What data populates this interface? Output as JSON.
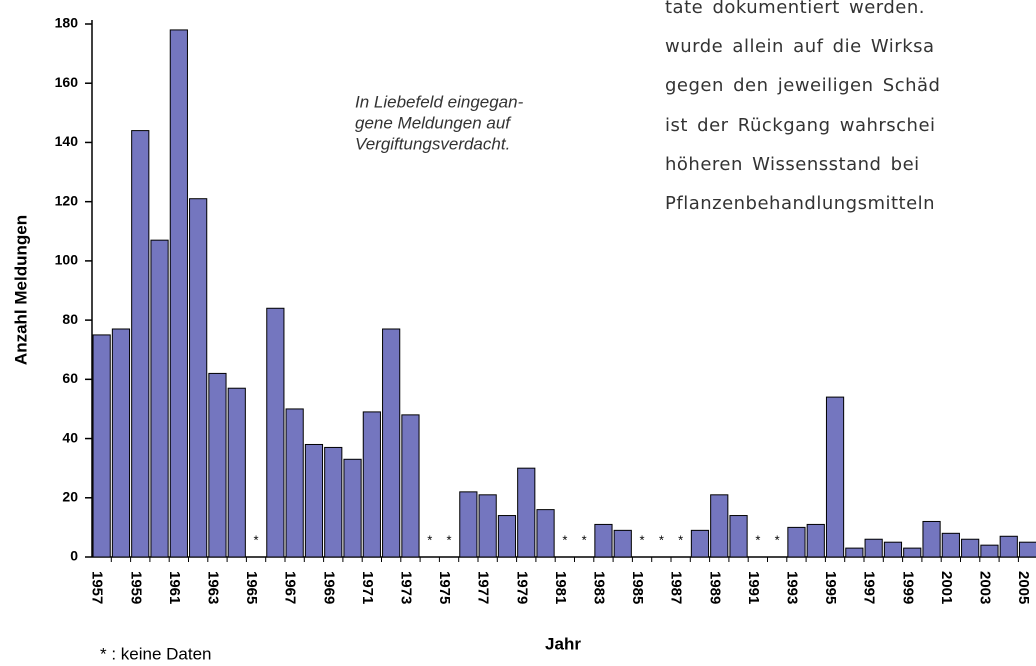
{
  "chart_data": {
    "type": "bar",
    "ylabel": "Anzahl Meldungen",
    "xlabel": "Jahr",
    "annotation": [
      "In Liebefeld eingegan-",
      "gene Meldungen auf",
      "Vergiftungsverdacht."
    ],
    "footnote": "* : keine Daten",
    "missing_label": "*",
    "categories": [
      "1957",
      null,
      "1959",
      null,
      "1961",
      null,
      "1963",
      null,
      "1965",
      null,
      "1967",
      null,
      "1969",
      null,
      "1971",
      null,
      "1973",
      null,
      "1975",
      null,
      "1977",
      null,
      "1979",
      null,
      "1981",
      null,
      "1983",
      null,
      "1985",
      null,
      "1987",
      null,
      "1989",
      null,
      "1991",
      null,
      "1993",
      null,
      "1995",
      null,
      "1997",
      null,
      "1999",
      null,
      "2001",
      null,
      "2003",
      null,
      "2005"
    ],
    "values": [
      75,
      77,
      144,
      107,
      178,
      121,
      62,
      57,
      null,
      84,
      50,
      38,
      37,
      33,
      49,
      77,
      48,
      null,
      null,
      22,
      21,
      14,
      30,
      16,
      null,
      null,
      11,
      9,
      null,
      null,
      null,
      9,
      21,
      14,
      null,
      null,
      10,
      11,
      54,
      3,
      6,
      5,
      3,
      12,
      8,
      6,
      4,
      7,
      5
    ],
    "color": "#7476bf",
    "ylim": [
      0,
      180
    ],
    "yticks": [
      0,
      20,
      40,
      60,
      80,
      100,
      120,
      140,
      160,
      180
    ]
  },
  "side_text": [
    "tate dokumentiert werden.",
    "wurde allein auf die Wirksa",
    "gegen den jeweiligen Schäd",
    "ist der Rückgang wahrschei",
    "höheren Wissensstand bei",
    "Pflanzenbehandlungsmitteln"
  ]
}
